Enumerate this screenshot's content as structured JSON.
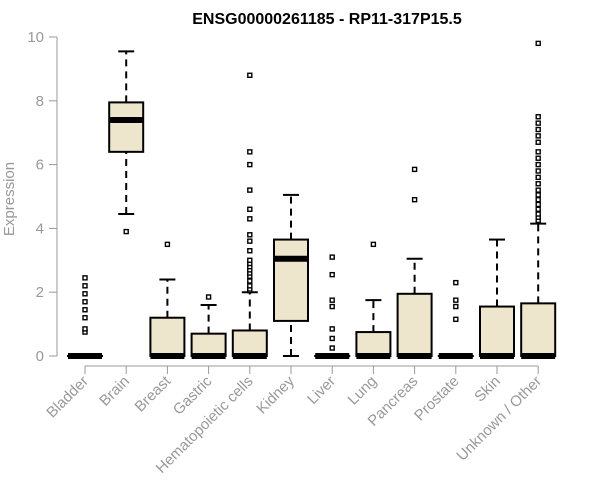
{
  "chart_data": {
    "type": "boxplot",
    "title": "ENSG00000261185 - RP11-317P15.5",
    "ylabel": "Expression",
    "xlabel": "",
    "ylim": [
      0,
      10
    ],
    "yticks": [
      0,
      2,
      4,
      6,
      8,
      10
    ],
    "grid": false,
    "legend": "none",
    "colors": {
      "box_fill": "#ede6cc",
      "box_edge": "#000000",
      "axis": "#999999",
      "tick_label": "#999999"
    },
    "categories": [
      "Bladder",
      "Brain",
      "Breast",
      "Gastric",
      "Hematopoietic cells",
      "Kidney",
      "Liver",
      "Lung",
      "Pancreas",
      "Prostate",
      "Skin",
      "Unknown / Other"
    ],
    "boxes": [
      {
        "category": "Bladder",
        "whisker_low": 0,
        "q1": 0,
        "median": 0,
        "q3": 0,
        "whisker_high": 0,
        "outliers": [
          0.75,
          0.85,
          1.2,
          1.45,
          1.7,
          1.95,
          2.2,
          2.45
        ]
      },
      {
        "category": "Brain",
        "whisker_low": 4.45,
        "q1": 6.4,
        "median": 7.4,
        "q3": 7.95,
        "whisker_high": 9.55,
        "outliers": [
          3.9
        ]
      },
      {
        "category": "Breast",
        "whisker_low": 0,
        "q1": 0,
        "median": 0,
        "q3": 1.2,
        "whisker_high": 2.4,
        "outliers": [
          3.5
        ]
      },
      {
        "category": "Gastric",
        "whisker_low": 0,
        "q1": 0,
        "median": 0,
        "q3": 0.7,
        "whisker_high": 1.6,
        "outliers": [
          1.85
        ]
      },
      {
        "category": "Hematopoietic cells",
        "whisker_low": 0,
        "q1": 0,
        "median": 0,
        "q3": 0.8,
        "whisker_high": 2.0,
        "outliers": [
          2.05,
          2.1,
          2.2,
          2.35,
          2.5,
          2.6,
          2.7,
          2.8,
          2.9,
          3.0,
          3.3,
          3.6,
          3.8,
          4.3,
          4.6,
          5.2,
          6.0,
          6.4,
          8.8
        ]
      },
      {
        "category": "Kidney",
        "whisker_low": 0,
        "q1": 1.1,
        "median": 3.05,
        "q3": 3.65,
        "whisker_high": 5.05,
        "outliers": []
      },
      {
        "category": "Liver",
        "whisker_low": 0,
        "q1": 0,
        "median": 0,
        "q3": 0,
        "whisker_high": 0,
        "outliers": [
          0.25,
          0.55,
          0.85,
          1.55,
          1.75,
          2.55,
          3.1
        ]
      },
      {
        "category": "Lung",
        "whisker_low": 0,
        "q1": 0,
        "median": 0,
        "q3": 0.75,
        "whisker_high": 1.75,
        "outliers": [
          3.5
        ]
      },
      {
        "category": "Pancreas",
        "whisker_low": 0,
        "q1": 0,
        "median": 0,
        "q3": 1.95,
        "whisker_high": 3.05,
        "outliers": [
          4.9,
          5.85
        ]
      },
      {
        "category": "Prostate",
        "whisker_low": 0,
        "q1": 0,
        "median": 0,
        "q3": 0,
        "whisker_high": 0,
        "outliers": [
          1.15,
          1.55,
          1.75,
          2.3
        ]
      },
      {
        "category": "Skin",
        "whisker_low": 0,
        "q1": 0,
        "median": 0,
        "q3": 1.55,
        "whisker_high": 3.65,
        "outliers": []
      },
      {
        "category": "Unknown / Other",
        "whisker_low": 0,
        "q1": 0,
        "median": 0,
        "q3": 1.65,
        "whisker_high": 4.15,
        "outliers": [
          4.25,
          4.35,
          4.45,
          4.6,
          4.75,
          4.9,
          5.05,
          5.2,
          5.4,
          5.6,
          5.8,
          6.0,
          6.2,
          6.4,
          6.7,
          6.9,
          7.1,
          7.3,
          7.5,
          9.8
        ]
      }
    ]
  }
}
